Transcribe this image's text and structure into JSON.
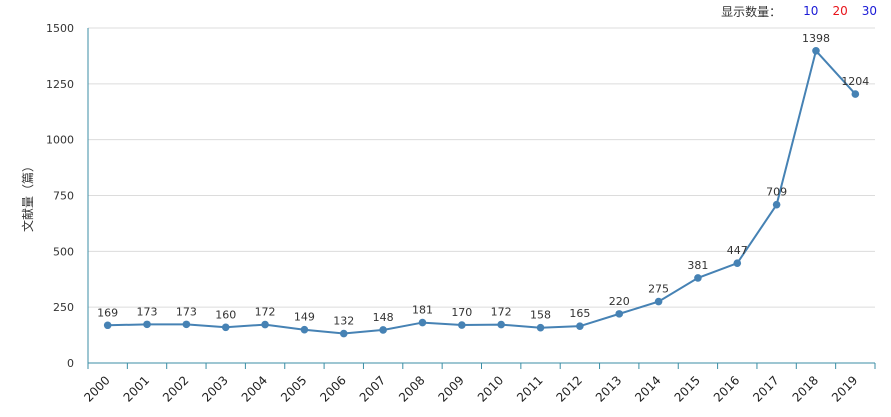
{
  "controls": {
    "display_count_label": "显示数量：",
    "options": [
      {
        "label": "10",
        "color": "#1a1ad6"
      },
      {
        "label": "20",
        "color": "#e8131a"
      },
      {
        "label": "30",
        "color": "#1a1ad6"
      }
    ]
  },
  "chart_data": {
    "type": "line",
    "ylabel": "文献量（篇）",
    "ylim": [
      0,
      1500
    ],
    "yticks": [
      0,
      250,
      500,
      750,
      1000,
      1250,
      1500
    ],
    "categories": [
      "2000",
      "2001",
      "2002",
      "2003",
      "2004",
      "2005",
      "2006",
      "2007",
      "2008",
      "2009",
      "2010",
      "2011",
      "2012",
      "2013",
      "2014",
      "2015",
      "2016",
      "2017",
      "2018",
      "2019"
    ],
    "values": [
      169,
      173,
      173,
      160,
      172,
      149,
      132,
      148,
      181,
      170,
      172,
      158,
      165,
      220,
      275,
      381,
      447,
      709,
      1398,
      1204
    ],
    "grid": true,
    "line_color": "#4682b4"
  }
}
